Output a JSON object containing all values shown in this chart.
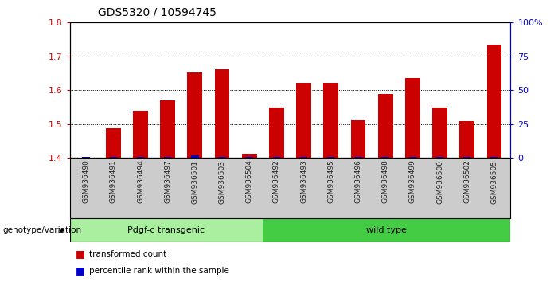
{
  "title": "GDS5320 / 10594745",
  "samples": [
    "GSM936490",
    "GSM936491",
    "GSM936494",
    "GSM936497",
    "GSM936501",
    "GSM936503",
    "GSM936504",
    "GSM936492",
    "GSM936493",
    "GSM936495",
    "GSM936496",
    "GSM936498",
    "GSM936499",
    "GSM936500",
    "GSM936502",
    "GSM936505"
  ],
  "red_values": [
    1.401,
    1.487,
    1.54,
    1.57,
    1.652,
    1.663,
    1.413,
    1.548,
    1.623,
    1.621,
    1.512,
    1.588,
    1.637,
    1.548,
    1.508,
    1.736
  ],
  "blue_values": [
    1.0,
    1.0,
    1.0,
    1.0,
    2.0,
    1.0,
    1.0,
    1.0,
    1.0,
    1.0,
    1.0,
    1.0,
    1.0,
    1.0,
    1.0,
    1.0
  ],
  "group1_label": "Pdgf-c transgenic",
  "group2_label": "wild type",
  "group1_count": 7,
  "group2_count": 9,
  "group1_color": "#aaeea0",
  "group2_color": "#44cc44",
  "ymin": 1.4,
  "ymax": 1.8,
  "yticks": [
    1.4,
    1.5,
    1.6,
    1.7,
    1.8
  ],
  "right_yticks": [
    0,
    25,
    50,
    75,
    100
  ],
  "right_ytick_labels": [
    "0",
    "25",
    "50",
    "75",
    "100%"
  ],
  "bar_width": 0.55,
  "red_color": "#cc0000",
  "blue_color": "#0000cc",
  "legend_transformed": "transformed count",
  "legend_percentile": "percentile rank within the sample",
  "xlabel_left": "genotype/variation",
  "background_color": "#ffffff",
  "tick_bg_color": "#cccccc"
}
